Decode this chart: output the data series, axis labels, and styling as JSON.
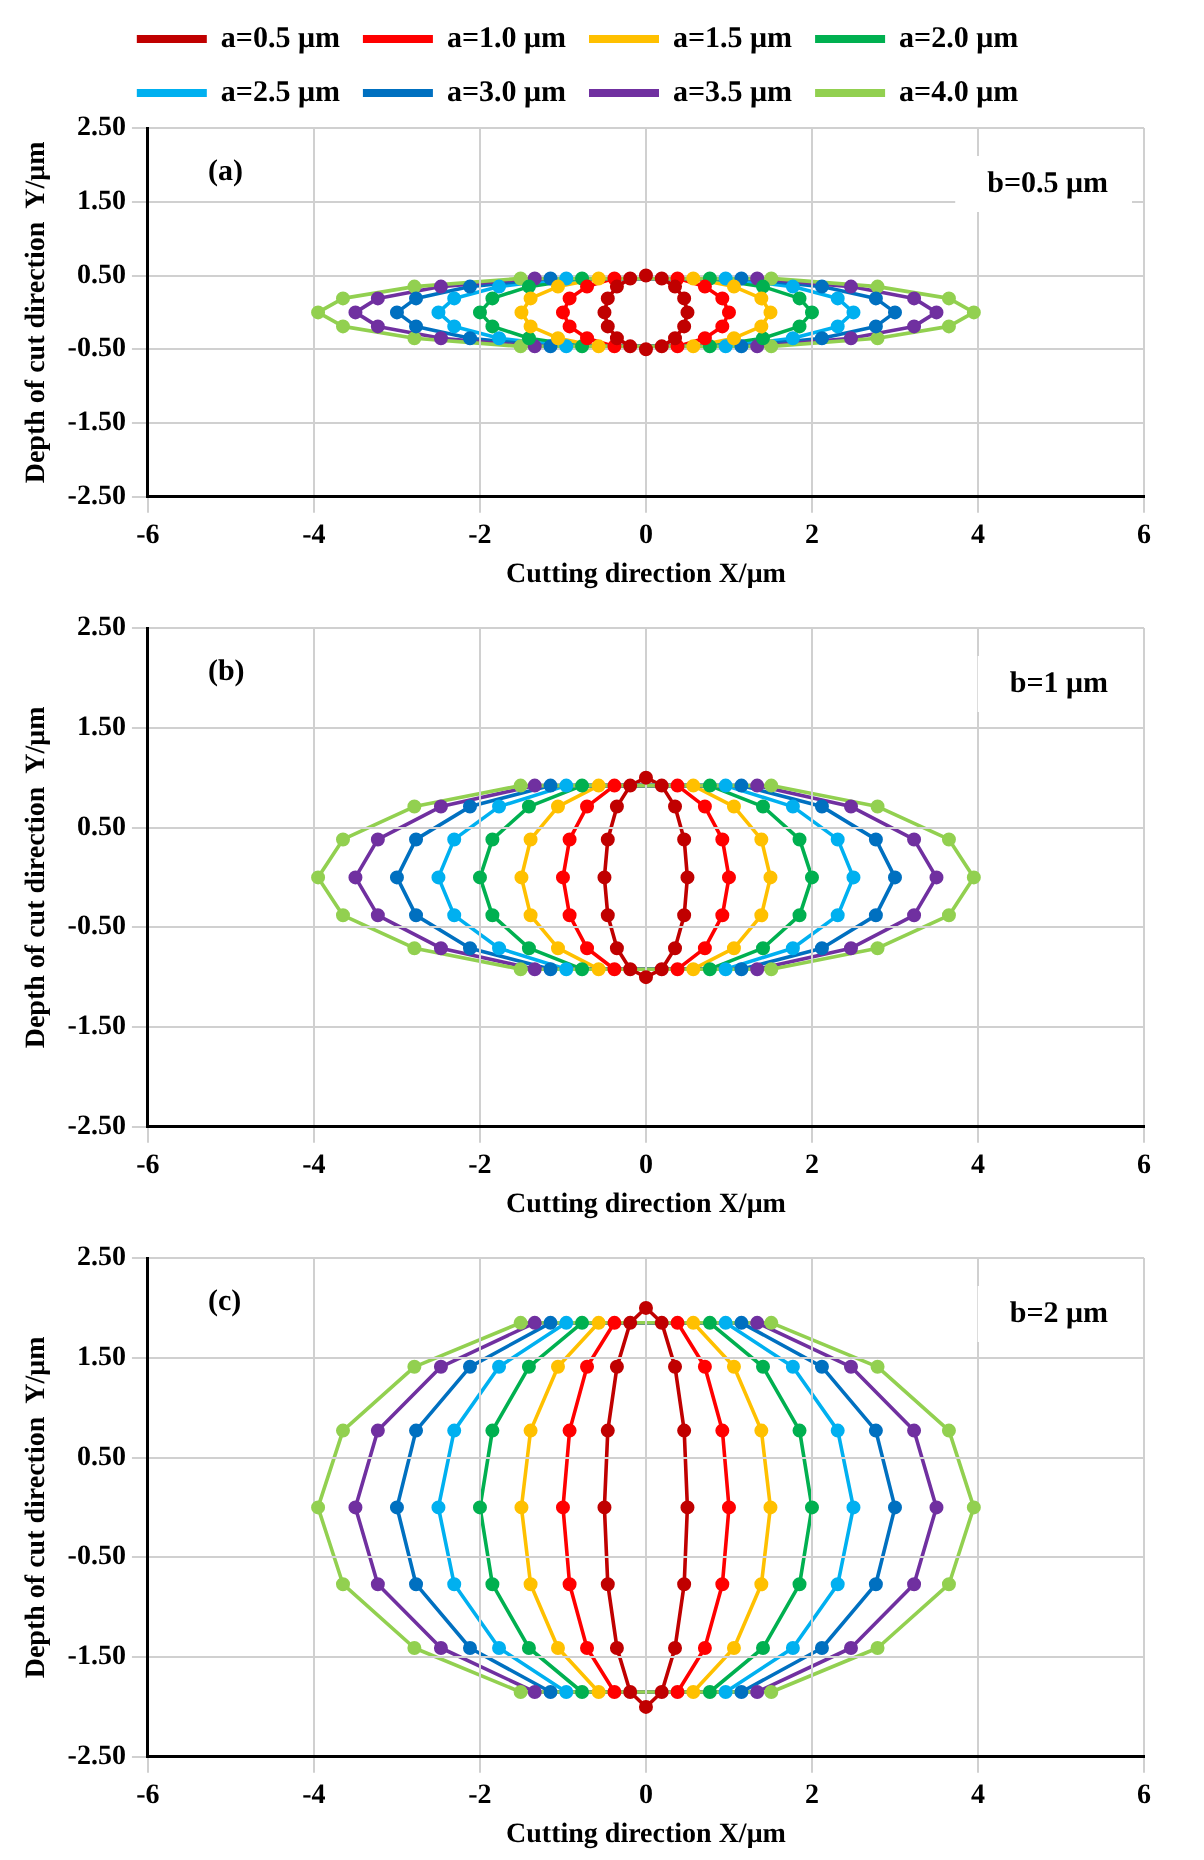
{
  "chart_data": [
    {
      "type": "scatter",
      "line_style": "solid",
      "xlabel": "Cutting direction X/μm",
      "ylabel": "Depth of cut direction  Y/μm",
      "annotations": [
        "(a)",
        "b=0.5 μm"
      ],
      "legend": "top",
      "grid": true,
      "marker": "circle",
      "xlim": [
        -6,
        6
      ],
      "xticks": [
        -6,
        -4,
        -2,
        0,
        2,
        4,
        6
      ],
      "ylim": [
        -2.5,
        2.5
      ],
      "yticks": [
        {
          "value": -2.5,
          "label": "-2.50"
        },
        {
          "value": -1.5,
          "label": "-1.50"
        },
        {
          "value": -0.5,
          "label": "-0.50"
        },
        {
          "value": 0.5,
          "label": "0.50"
        },
        {
          "value": 1.5,
          "label": "1.50"
        },
        {
          "value": 2.5,
          "label": "2.50"
        }
      ],
      "series": [
        {
          "name": "a=0.5 μm",
          "color": "#c00000",
          "x": [
            0.5,
            0.46,
            0.35,
            0.19,
            0,
            -0.19,
            -0.35,
            -0.46,
            -0.5,
            -0.46,
            -0.35,
            -0.19,
            0,
            0.19,
            0.35,
            0.46
          ],
          "values": [
            0,
            0.19,
            0.35,
            0.46,
            0.5,
            0.46,
            0.35,
            0.19,
            0,
            -0.19,
            -0.35,
            -0.46,
            -0.5,
            -0.46,
            -0.35,
            -0.19
          ]
        },
        {
          "name": "a=1.0 μm",
          "color": "#ff0000",
          "x": [
            1,
            0.92,
            0.71,
            0.38,
            -0.38,
            -0.71,
            -0.92,
            -1,
            -0.92,
            -0.71,
            -0.38,
            0.38,
            0.71,
            0.92
          ],
          "values": [
            0,
            0.19,
            0.35,
            0.46,
            0.46,
            0.35,
            0.19,
            0,
            -0.19,
            -0.35,
            -0.46,
            -0.46,
            -0.35,
            -0.19
          ]
        },
        {
          "name": "a=1.5 μm",
          "color": "#ffc000",
          "x": [
            1.5,
            1.39,
            1.06,
            0.57,
            -0.57,
            -1.06,
            -1.39,
            -1.5,
            -1.39,
            -1.06,
            -0.57,
            0.57,
            1.06,
            1.39
          ],
          "values": [
            0,
            0.19,
            0.35,
            0.46,
            0.46,
            0.35,
            0.19,
            0,
            -0.19,
            -0.35,
            -0.46,
            -0.46,
            -0.35,
            -0.19
          ]
        },
        {
          "name": "a=2.0 μm",
          "color": "#00b050",
          "x": [
            2,
            1.85,
            1.41,
            0.77,
            -0.77,
            -1.41,
            -1.85,
            -2,
            -1.85,
            -1.41,
            -0.77,
            0.77,
            1.41,
            1.85
          ],
          "values": [
            0,
            0.19,
            0.35,
            0.46,
            0.46,
            0.35,
            0.19,
            0,
            -0.19,
            -0.35,
            -0.46,
            -0.46,
            -0.35,
            -0.19
          ]
        },
        {
          "name": "a=2.5 μm",
          "color": "#00b0f0",
          "x": [
            2.5,
            2.31,
            1.77,
            0.96,
            -0.96,
            -1.77,
            -2.31,
            -2.5,
            -2.31,
            -1.77,
            -0.96,
            0.96,
            1.77,
            2.31
          ],
          "values": [
            0,
            0.19,
            0.35,
            0.46,
            0.46,
            0.35,
            0.19,
            0,
            -0.19,
            -0.35,
            -0.46,
            -0.46,
            -0.35,
            -0.19
          ]
        },
        {
          "name": "a=3.0 μm",
          "color": "#0070c0",
          "x": [
            3,
            2.77,
            2.12,
            1.15,
            -1.15,
            -2.12,
            -2.77,
            -3,
            -2.77,
            -2.12,
            -1.15,
            1.15,
            2.12,
            2.77
          ],
          "values": [
            0,
            0.19,
            0.35,
            0.46,
            0.46,
            0.35,
            0.19,
            0,
            -0.19,
            -0.35,
            -0.46,
            -0.46,
            -0.35,
            -0.19
          ]
        },
        {
          "name": "a=3.5 μm",
          "color": "#7030a0",
          "x": [
            3.5,
            3.23,
            2.47,
            1.34,
            -1.34,
            -2.47,
            -3.23,
            -3.5,
            -3.23,
            -2.47,
            -1.34,
            1.34,
            2.47,
            3.23
          ],
          "values": [
            0,
            0.19,
            0.35,
            0.46,
            0.46,
            0.35,
            0.19,
            0,
            -0.19,
            -0.35,
            -0.46,
            -0.46,
            -0.35,
            -0.19
          ]
        },
        {
          "name": "a=4.0 μm",
          "color": "#92d050",
          "x": [
            3.95,
            3.65,
            2.79,
            1.51,
            -1.51,
            -2.79,
            -3.65,
            -3.95,
            -3.65,
            -2.79,
            -1.51,
            1.51,
            2.79,
            3.65
          ],
          "values": [
            0,
            0.19,
            0.35,
            0.46,
            0.46,
            0.35,
            0.19,
            0,
            -0.19,
            -0.35,
            -0.46,
            -0.46,
            -0.35,
            -0.19
          ]
        }
      ]
    },
    {
      "type": "scatter",
      "line_style": "solid",
      "xlabel": "Cutting direction X/μm",
      "ylabel": "Depth of cut direction  Y/μm",
      "annotations": [
        "(b)",
        "b=1 μm"
      ],
      "grid": true,
      "marker": "circle",
      "xlim": [
        -6,
        6
      ],
      "xticks": [
        -6,
        -4,
        -2,
        0,
        2,
        4,
        6
      ],
      "ylim": [
        -2.5,
        2.5
      ],
      "yticks": [
        {
          "value": -2.5,
          "label": "-2.50"
        },
        {
          "value": -1.5,
          "label": "-1.50"
        },
        {
          "value": -0.5,
          "label": "-0.50"
        },
        {
          "value": 0.5,
          "label": "0.50"
        },
        {
          "value": 1.5,
          "label": "1.50"
        },
        {
          "value": 2.5,
          "label": "2.50"
        }
      ],
      "series": [
        {
          "color": "#c00000",
          "x": [
            0.5,
            0.46,
            0.35,
            0.19,
            0,
            -0.19,
            -0.35,
            -0.46,
            -0.5,
            -0.46,
            -0.35,
            -0.19,
            0,
            0.19,
            0.35,
            0.46
          ],
          "values": [
            0,
            0.38,
            0.71,
            0.92,
            1,
            0.92,
            0.71,
            0.38,
            0,
            -0.38,
            -0.71,
            -0.92,
            -1,
            -0.92,
            -0.71,
            -0.38
          ]
        },
        {
          "color": "#ff0000",
          "x": [
            1,
            0.92,
            0.71,
            0.38,
            -0.38,
            -0.71,
            -0.92,
            -1,
            -0.92,
            -0.71,
            -0.38,
            0.38,
            0.71,
            0.92
          ],
          "values": [
            0,
            0.38,
            0.71,
            0.92,
            0.92,
            0.71,
            0.38,
            0,
            -0.38,
            -0.71,
            -0.92,
            -0.92,
            -0.71,
            -0.38
          ]
        },
        {
          "color": "#ffc000",
          "x": [
            1.5,
            1.39,
            1.06,
            0.57,
            -0.57,
            -1.06,
            -1.39,
            -1.5,
            -1.39,
            -1.06,
            -0.57,
            0.57,
            1.06,
            1.39
          ],
          "values": [
            0,
            0.38,
            0.71,
            0.92,
            0.92,
            0.71,
            0.38,
            0,
            -0.38,
            -0.71,
            -0.92,
            -0.92,
            -0.71,
            -0.38
          ]
        },
        {
          "color": "#00b050",
          "x": [
            2,
            1.85,
            1.41,
            0.77,
            -0.77,
            -1.41,
            -1.85,
            -2,
            -1.85,
            -1.41,
            -0.77,
            0.77,
            1.41,
            1.85
          ],
          "values": [
            0,
            0.38,
            0.71,
            0.92,
            0.92,
            0.71,
            0.38,
            0,
            -0.38,
            -0.71,
            -0.92,
            -0.92,
            -0.71,
            -0.38
          ]
        },
        {
          "color": "#00b0f0",
          "x": [
            2.5,
            2.31,
            1.77,
            0.96,
            -0.96,
            -1.77,
            -2.31,
            -2.5,
            -2.31,
            -1.77,
            -0.96,
            0.96,
            1.77,
            2.31
          ],
          "values": [
            0,
            0.38,
            0.71,
            0.92,
            0.92,
            0.71,
            0.38,
            0,
            -0.38,
            -0.71,
            -0.92,
            -0.92,
            -0.71,
            -0.38
          ]
        },
        {
          "color": "#0070c0",
          "x": [
            3,
            2.77,
            2.12,
            1.15,
            -1.15,
            -2.12,
            -2.77,
            -3,
            -2.77,
            -2.12,
            -1.15,
            1.15,
            2.12,
            2.77
          ],
          "values": [
            0,
            0.38,
            0.71,
            0.92,
            0.92,
            0.71,
            0.38,
            0,
            -0.38,
            -0.71,
            -0.92,
            -0.92,
            -0.71,
            -0.38
          ]
        },
        {
          "color": "#7030a0",
          "x": [
            3.5,
            3.23,
            2.47,
            1.34,
            -1.34,
            -2.47,
            -3.23,
            -3.5,
            -3.23,
            -2.47,
            -1.34,
            1.34,
            2.47,
            3.23
          ],
          "values": [
            0,
            0.38,
            0.71,
            0.92,
            0.92,
            0.71,
            0.38,
            0,
            -0.38,
            -0.71,
            -0.92,
            -0.92,
            -0.71,
            -0.38
          ]
        },
        {
          "color": "#92d050",
          "x": [
            3.95,
            3.65,
            2.79,
            1.51,
            -1.51,
            -2.79,
            -3.65,
            -3.95,
            -3.65,
            -2.79,
            -1.51,
            1.51,
            2.79,
            3.65
          ],
          "values": [
            0,
            0.38,
            0.71,
            0.92,
            0.92,
            0.71,
            0.38,
            0,
            -0.38,
            -0.71,
            -0.92,
            -0.92,
            -0.71,
            -0.38
          ]
        }
      ]
    },
    {
      "type": "scatter",
      "line_style": "solid",
      "xlabel": "Cutting direction X/μm",
      "ylabel": "Depth of cut direction  Y/μm",
      "annotations": [
        "(c)",
        "b=2 μm"
      ],
      "grid": true,
      "marker": "circle",
      "xlim": [
        -6,
        6
      ],
      "xticks": [
        -6,
        -4,
        -2,
        0,
        2,
        4,
        6
      ],
      "ylim": [
        -2.5,
        2.5
      ],
      "yticks": [
        {
          "value": -2.5,
          "label": "-2.50"
        },
        {
          "value": -1.5,
          "label": "-1.50"
        },
        {
          "value": -0.5,
          "label": "-0.50"
        },
        {
          "value": 0.5,
          "label": "0.50"
        },
        {
          "value": 1.5,
          "label": "1.50"
        },
        {
          "value": 2.5,
          "label": "2.50"
        }
      ],
      "series": [
        {
          "color": "#c00000",
          "x": [
            0.5,
            0.46,
            0.35,
            0.19,
            0,
            -0.19,
            -0.35,
            -0.46,
            -0.5,
            -0.46,
            -0.35,
            -0.19,
            0,
            0.19,
            0.35,
            0.46
          ],
          "values": [
            0,
            0.77,
            1.41,
            1.85,
            2,
            1.85,
            1.41,
            0.77,
            0,
            -0.77,
            -1.41,
            -1.85,
            -2,
            -1.85,
            -1.41,
            -0.77
          ]
        },
        {
          "color": "#ff0000",
          "x": [
            1,
            0.92,
            0.71,
            0.38,
            -0.38,
            -0.71,
            -0.92,
            -1,
            -0.92,
            -0.71,
            -0.38,
            0.38,
            0.71,
            0.92
          ],
          "values": [
            0,
            0.77,
            1.41,
            1.85,
            1.85,
            1.41,
            0.77,
            0,
            -0.77,
            -1.41,
            -1.85,
            -1.85,
            -1.41,
            -0.77
          ]
        },
        {
          "color": "#ffc000",
          "x": [
            1.5,
            1.39,
            1.06,
            0.57,
            -0.57,
            -1.06,
            -1.39,
            -1.5,
            -1.39,
            -1.06,
            -0.57,
            0.57,
            1.06,
            1.39
          ],
          "values": [
            0,
            0.77,
            1.41,
            1.85,
            1.85,
            1.41,
            0.77,
            0,
            -0.77,
            -1.41,
            -1.85,
            -1.85,
            -1.41,
            -0.77
          ]
        },
        {
          "color": "#00b050",
          "x": [
            2,
            1.85,
            1.41,
            0.77,
            -0.77,
            -1.41,
            -1.85,
            -2,
            -1.85,
            -1.41,
            -0.77,
            0.77,
            1.41,
            1.85
          ],
          "values": [
            0,
            0.77,
            1.41,
            1.85,
            1.85,
            1.41,
            0.77,
            0,
            -0.77,
            -1.41,
            -1.85,
            -1.85,
            -1.41,
            -0.77
          ]
        },
        {
          "color": "#00b0f0",
          "x": [
            2.5,
            2.31,
            1.77,
            0.96,
            -0.96,
            -1.77,
            -2.31,
            -2.5,
            -2.31,
            -1.77,
            -0.96,
            0.96,
            1.77,
            2.31
          ],
          "values": [
            0,
            0.77,
            1.41,
            1.85,
            1.85,
            1.41,
            0.77,
            0,
            -0.77,
            -1.41,
            -1.85,
            -1.85,
            -1.41,
            -0.77
          ]
        },
        {
          "color": "#0070c0",
          "x": [
            3,
            2.77,
            2.12,
            1.15,
            -1.15,
            -2.12,
            -2.77,
            -3,
            -2.77,
            -2.12,
            -1.15,
            1.15,
            2.12,
            2.77
          ],
          "values": [
            0,
            0.77,
            1.41,
            1.85,
            1.85,
            1.41,
            0.77,
            0,
            -0.77,
            -1.41,
            -1.85,
            -1.85,
            -1.41,
            -0.77
          ]
        },
        {
          "color": "#7030a0",
          "x": [
            3.5,
            3.23,
            2.47,
            1.34,
            -1.34,
            -2.47,
            -3.23,
            -3.5,
            -3.23,
            -2.47,
            -1.34,
            1.34,
            2.47,
            3.23
          ],
          "values": [
            0,
            0.77,
            1.41,
            1.85,
            1.85,
            1.41,
            0.77,
            0,
            -0.77,
            -1.41,
            -1.85,
            -1.85,
            -1.41,
            -0.77
          ]
        },
        {
          "color": "#92d050",
          "x": [
            3.95,
            3.65,
            2.79,
            1.51,
            -1.51,
            -2.79,
            -3.65,
            -3.95,
            -3.65,
            -2.79,
            -1.51,
            1.51,
            2.79,
            3.65
          ],
          "values": [
            0,
            0.77,
            1.41,
            1.85,
            1.85,
            1.41,
            0.77,
            0,
            -0.77,
            -1.41,
            -1.85,
            -1.85,
            -1.41,
            -0.77
          ]
        }
      ]
    }
  ]
}
